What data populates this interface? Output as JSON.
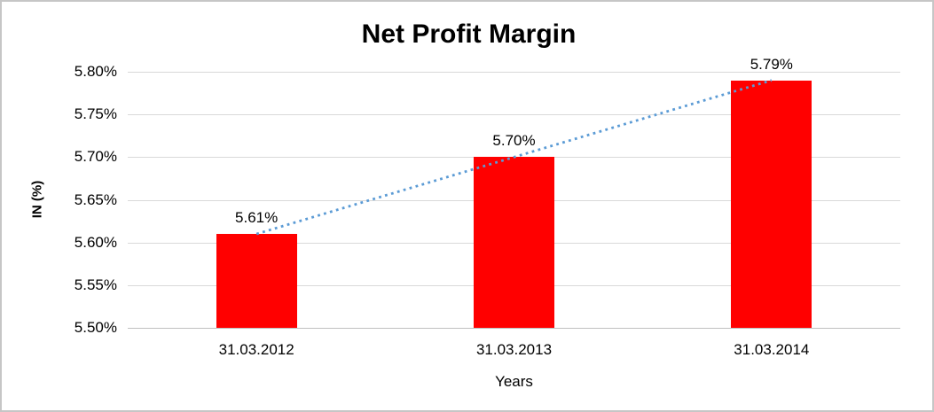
{
  "chart_data": {
    "type": "bar",
    "title": "Net Profit Margin",
    "xlabel": "Years",
    "ylabel": "IN (%)",
    "categories": [
      "31.03.2012",
      "31.03.2013",
      "31.03.2014"
    ],
    "values": [
      5.61,
      5.7,
      5.79
    ],
    "bar_labels": [
      "5.61%",
      "5.70%",
      "5.79%"
    ],
    "ylim": [
      5.5,
      5.8
    ],
    "ytick_values": [
      5.5,
      5.55,
      5.6,
      5.65,
      5.7,
      5.75,
      5.8
    ],
    "ytick_labels": [
      "5.50%",
      "5.55%",
      "5.60%",
      "5.65%",
      "5.70%",
      "5.75%",
      "5.80%"
    ],
    "grid": true,
    "legend": "none",
    "bar_color": "#ff0000",
    "gridline_color": "#d9d9d9",
    "trendline": {
      "type": "linear",
      "style": "dotted",
      "color": "#5b9bd5"
    }
  }
}
